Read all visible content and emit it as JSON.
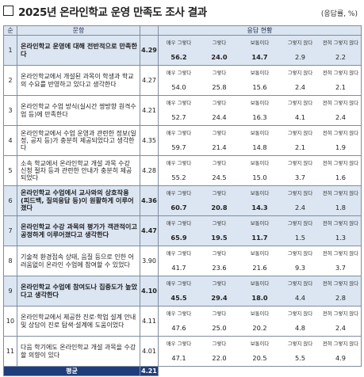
{
  "title": "2025년 온라인학교 운영 만족도 조사 결과",
  "unit": "(응답률, %)",
  "headers": {
    "no": "순",
    "question": "문항",
    "mean": "",
    "response": "응답 현황"
  },
  "scale": [
    "매우 그렇다",
    "그렇다",
    "보통이다",
    "그렇지 않다",
    "전혀 그렇지 않다"
  ],
  "rows": [
    {
      "no": "1",
      "question": "온라인학교 운영에 대해 전반적으로 만족한다",
      "mean": "4.29",
      "values": [
        "56.2",
        "24.0",
        "14.7",
        "2.9",
        "2.2"
      ],
      "highlight": true
    },
    {
      "no": "2",
      "question": "온라인학교에서 개설된 과목이 학생과 학교의 수요를 반영하고 있다고 생각한다",
      "mean": "4.27",
      "values": [
        "54.0",
        "25.8",
        "15.6",
        "2.4",
        "2.1"
      ],
      "highlight": false
    },
    {
      "no": "3",
      "question": "온라인학교 수업 방식(실시간 쌍방향 원격수업 등)에 만족한다",
      "mean": "4.21",
      "values": [
        "52.7",
        "24.4",
        "16.3",
        "4.1",
        "2.4"
      ],
      "highlight": false
    },
    {
      "no": "4",
      "question": "온라인학교에서 수업 운영과 관련한 정보(일정, 공지 등)가 충분히 제공되었다고 생각한다",
      "mean": "4.35",
      "values": [
        "59.7",
        "21.4",
        "14.8",
        "2.1",
        "1.9"
      ],
      "highlight": false
    },
    {
      "no": "5",
      "question": "소속 학교에서 온라인학교 개설 과목 수강 신청 절차 등과 관련한 안내가 충분히 제공되었다",
      "mean": "4.28",
      "values": [
        "55.2",
        "24.5",
        "15.0",
        "3.7",
        "1.6"
      ],
      "highlight": false
    },
    {
      "no": "6",
      "question": "온라인학교 수업에서 교사와의 상호작용(피드백, 질의응답 등)이 원활하게 이루어졌다",
      "mean": "4.36",
      "values": [
        "60.7",
        "20.8",
        "14.3",
        "2.4",
        "1.8"
      ],
      "highlight": true
    },
    {
      "no": "7",
      "question": "온라인학교 수강 과목의 평가가 객관적이고 공정하게 이루어졌다고 생각한다",
      "mean": "4.47",
      "values": [
        "65.9",
        "19.5",
        "11.7",
        "1.5",
        "1.3"
      ],
      "highlight": true
    },
    {
      "no": "8",
      "question": "기술적 환경접속 상태, 음질 등으로 인한 어려움없이 온라인 수업에 참여할 수 있었다",
      "mean": "3.90",
      "values": [
        "41.7",
        "23.6",
        "21.6",
        "9.3",
        "3.7"
      ],
      "highlight": false
    },
    {
      "no": "9",
      "question": "온라인학교 수업에 참여도나 집중도가 높았다고 생각한다",
      "mean": "4.10",
      "values": [
        "45.5",
        "29.4",
        "18.0",
        "4.4",
        "2.8"
      ],
      "highlight": true
    },
    {
      "no": "10",
      "question": "온라인학교에서 제공한 진로·학업 설계 안내 및 상담이 진로 탐색·설계에 도움이었다",
      "mean": "4.11",
      "values": [
        "47.6",
        "25.0",
        "20.2",
        "4.8",
        "2.4"
      ],
      "highlight": false
    },
    {
      "no": "11",
      "question": "다음 학기에도 온라인학교 개설 과목을 수강할 의향이 있다",
      "mean": "4.01",
      "values": [
        "47.1",
        "22.0",
        "20.5",
        "5.5",
        "4.9"
      ],
      "highlight": false
    }
  ],
  "average": {
    "label": "평균",
    "value": "4.21"
  }
}
